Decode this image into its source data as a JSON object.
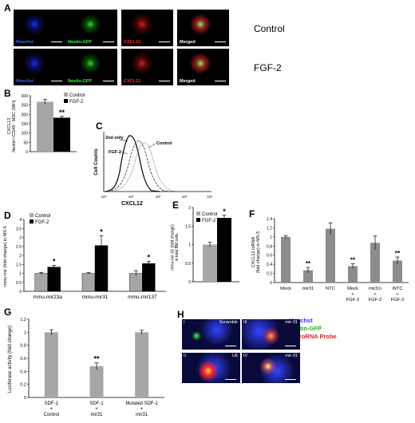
{
  "panelA": {
    "letter": "A",
    "rows": [
      {
        "label": "Control",
        "tiles": [
          "Hoechst",
          "Nestin-GFP",
          "CXCL12",
          "Merged"
        ]
      },
      {
        "label": "FGF-2",
        "tiles": [
          "Hoechst",
          "Nestin-GFP",
          "CXCL12",
          "Merged"
        ]
      }
    ],
    "tile_colors": {
      "Hoechst": "#3a66ff",
      "Nestin-GFP": "#33ff33",
      "CXCL12": "#ff3333",
      "Merged": "#ffffff"
    }
  },
  "panelC": {
    "letter": "C",
    "ylabel": "Cell Counts",
    "xlabel": "CXCL12",
    "labels": [
      "2nd only",
      "FGF-2",
      "Control"
    ],
    "xticks": [
      "10⁰",
      "10¹",
      "10²",
      "10³",
      "10⁴"
    ]
  },
  "panelH": {
    "letter": "H",
    "legend": [
      {
        "text": "Hoechst",
        "color": "#2b2bff"
      },
      {
        "text": "Nestin-GFP",
        "color": "#22aa22"
      },
      {
        "text": "microRNA Probe",
        "color": "#dd2222"
      }
    ],
    "tiles": [
      {
        "num": "I",
        "name": "Scramble"
      },
      {
        "num": "III",
        "name": "mir-31"
      },
      {
        "num": "II",
        "name": "U6"
      },
      {
        "num": "IV",
        "name": "mir-31"
      }
    ]
  },
  "chart_data": [
    {
      "id": "B",
      "letter": "B",
      "type": "bar",
      "ylabel": "CXCL12\nNestin⁺/CD45⁻ MSC (MFI)",
      "ylim": [
        0,
        300
      ],
      "yticks": [
        0,
        50,
        100,
        150,
        200,
        250,
        300
      ],
      "series": [
        {
          "name": "Control",
          "color": "#a6a6a6",
          "values": [
            268
          ]
        },
        {
          "name": "FGF-2",
          "color": "#000000",
          "values": [
            182
          ]
        }
      ],
      "errors": [
        12,
        7
      ],
      "annotations": [
        "",
        "**"
      ]
    },
    {
      "id": "D",
      "letter": "D",
      "type": "bar",
      "ylabel": "mmu-mir (fold change) in MS-5",
      "ylim": [
        0,
        4
      ],
      "yticks": [
        0,
        0.5,
        1,
        1.5,
        2,
        2.5,
        3,
        3.5,
        4
      ],
      "categories": [
        "mmu-mir23a",
        "mmu-mir31",
        "mmu-mir137"
      ],
      "series": [
        {
          "name": "Control",
          "color": "#a6a6a6",
          "values": [
            1.0,
            1.0,
            1.0
          ],
          "errors": [
            0.05,
            0.04,
            0.15
          ]
        },
        {
          "name": "FGF-2",
          "color": "#000000",
          "values": [
            1.35,
            2.55,
            1.55
          ],
          "errors": [
            0.1,
            0.55,
            0.12
          ]
        }
      ],
      "annotations": [
        "*",
        "*",
        "*"
      ]
    },
    {
      "id": "E",
      "letter": "E",
      "type": "bar",
      "ylabel": "mmu-mir-31 (fold change)\nin total BM cells",
      "ylim": [
        0,
        2
      ],
      "yticks": [
        0,
        0.5,
        1,
        1.5,
        2
      ],
      "series": [
        {
          "name": "Control",
          "color": "#a6a6a6",
          "values": [
            1.0
          ]
        },
        {
          "name": "FGF-2",
          "color": "#000000",
          "values": [
            1.72
          ]
        }
      ],
      "errors": [
        0.06,
        0.07
      ],
      "annotations": [
        "",
        "*"
      ]
    },
    {
      "id": "F",
      "letter": "F",
      "type": "bar",
      "ylabel": "CXCL12 mRNA\n(fold change) in MS-5",
      "ylim": [
        0,
        1.4
      ],
      "yticks": [
        0,
        0.2,
        0.4,
        0.6,
        0.8,
        1,
        1.2,
        1.4
      ],
      "categories": [
        [
          "Mock"
        ],
        [
          "mir31"
        ],
        [
          "NTC"
        ],
        [
          "Mock",
          "+",
          "FGF-2"
        ],
        [
          "mir31i",
          "+",
          "FGF-2"
        ],
        [
          "iNTC",
          "+",
          "FGF-2"
        ]
      ],
      "values": [
        1.0,
        0.27,
        1.18,
        0.36,
        0.87,
        0.48
      ],
      "errors": [
        0.03,
        0.06,
        0.13,
        0.05,
        0.15,
        0.08
      ],
      "annotations": [
        "",
        "**",
        "",
        "**",
        "",
        "**"
      ]
    },
    {
      "id": "G",
      "letter": "G",
      "type": "bar",
      "ylabel": "Luciferase activity (fold change)",
      "ylim": [
        0,
        1.2
      ],
      "yticks": [
        0,
        0.2,
        0.4,
        0.6,
        0.8,
        1,
        1.2
      ],
      "categories": [
        [
          "SDF-1",
          "+",
          "Control"
        ],
        [
          "SDF-1",
          "+",
          "mir31"
        ],
        [
          "Mutated SDF-1",
          "+",
          "mir31"
        ]
      ],
      "values": [
        1.0,
        0.48,
        1.0
      ],
      "errors": [
        0.04,
        0.05,
        0.03
      ],
      "annotations": [
        "",
        "**",
        ""
      ]
    }
  ]
}
